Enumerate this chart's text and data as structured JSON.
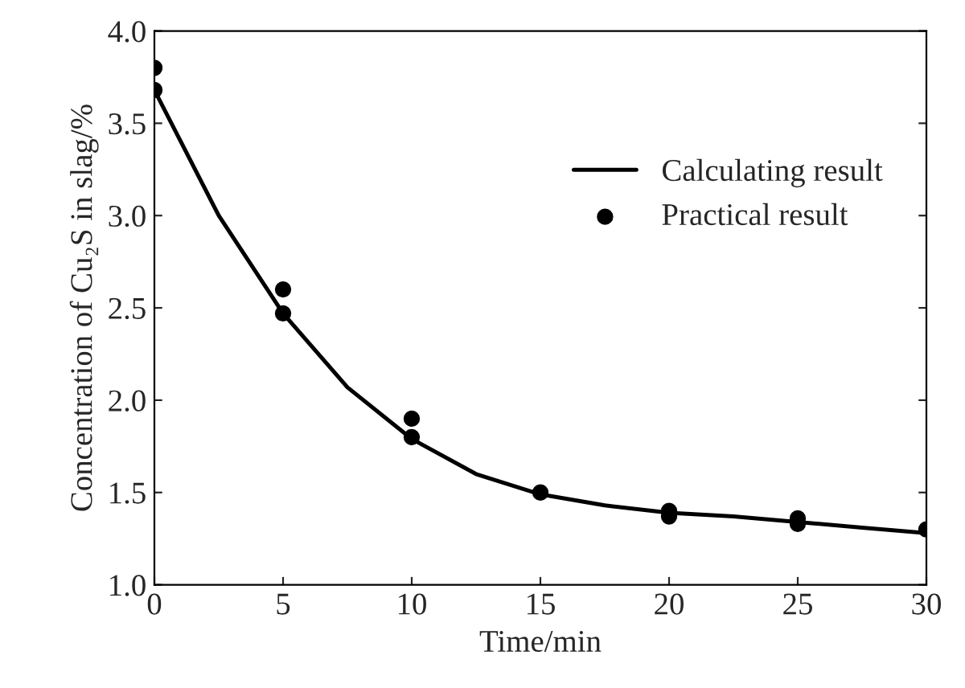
{
  "chart_data": {
    "type": "line",
    "xlabel": "Time/min",
    "ylabel": "Concentration of Cu₂S in slag/%",
    "xlim": [
      0,
      30
    ],
    "xticks": [
      0,
      5,
      10,
      15,
      20,
      25,
      30
    ],
    "ylim": [
      1.0,
      4.0
    ],
    "yticks": [
      {
        "value": 1.0,
        "label": "1.0"
      },
      {
        "value": 1.5,
        "label": "1.5"
      },
      {
        "value": 2.0,
        "label": "2.0"
      },
      {
        "value": 2.5,
        "label": "2.5"
      },
      {
        "value": 3.0,
        "label": "3.0"
      },
      {
        "value": 3.5,
        "label": "3.5"
      },
      {
        "value": 4.0,
        "label": "4.0"
      }
    ],
    "legend": "upper right",
    "grid": false,
    "series": [
      {
        "name": "Calculating result",
        "color": "#000000",
        "line_style": "solid",
        "marker": "none",
        "x": [
          0,
          2.5,
          5,
          7.5,
          10,
          12.5,
          15,
          17.5,
          20,
          22.5,
          25,
          27.5,
          30
        ],
        "values": [
          3.68,
          3.0,
          2.47,
          2.07,
          1.79,
          1.6,
          1.49,
          1.43,
          1.39,
          1.37,
          1.34,
          1.31,
          1.28
        ]
      },
      {
        "name": "Practical result",
        "type": "scatter",
        "color": "#000000",
        "marker": "circle",
        "x": [
          0,
          0,
          5,
          5,
          10,
          10,
          15,
          20,
          20,
          25,
          25,
          30
        ],
        "values": [
          3.8,
          3.68,
          2.6,
          2.47,
          1.9,
          1.8,
          1.5,
          1.4,
          1.37,
          1.36,
          1.33,
          1.3
        ]
      }
    ]
  }
}
